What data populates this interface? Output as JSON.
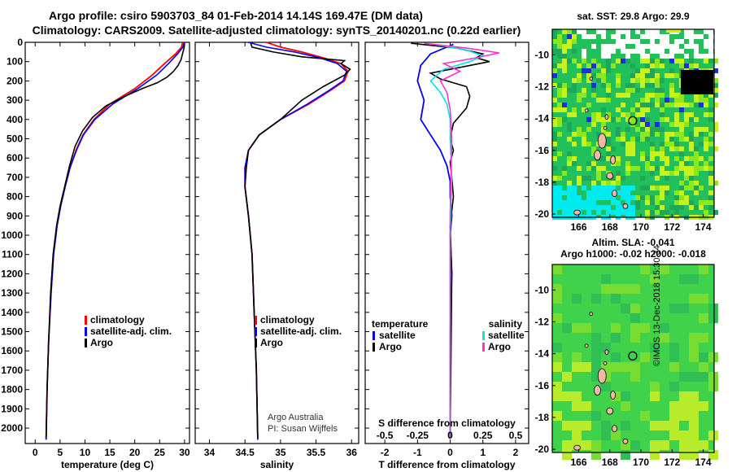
{
  "header": {
    "line1": "Argo profile: csiro 5903703_84 01-Feb-2014 14.14S 169.47E (DM data)",
    "line2": "Climatology: CARS2009. Satellite-adjusted climatology: synTS_20140201.nc (0.22d earlier)"
  },
  "credit": {
    "line1": "Argo Australia",
    "line2": "PI: Susan Wijffels"
  },
  "stamp": "©IMOS 13-Dec-2018 15:30:34",
  "colors": {
    "clim": "#ff0000",
    "sat": "#0000ff",
    "argo": "#000000",
    "sal_sat": "#00e5ee",
    "sal_argo": "#ff33cc"
  },
  "chart_data": [
    {
      "type": "line",
      "xlabel": "temperature (deg C)",
      "xlim": [
        -2,
        31
      ],
      "xticks": [
        0,
        5,
        10,
        15,
        20,
        25,
        30
      ],
      "ylim": [
        2080,
        0
      ],
      "yticks": [
        0,
        100,
        200,
        300,
        400,
        500,
        600,
        700,
        800,
        900,
        1000,
        1100,
        1200,
        1300,
        1400,
        1500,
        1600,
        1700,
        1800,
        1900,
        2000
      ],
      "legend": [
        "climatology",
        "satellite-adj. clim.",
        "Argo"
      ],
      "series": [
        {
          "name": "climatology",
          "color": "#ff0000",
          "x": [
            29.6,
            29.4,
            28.2,
            26.0,
            23.5,
            20.0,
            15.0,
            11.8,
            9.6,
            8.2,
            7.0,
            6.0,
            5.1,
            4.4,
            3.7,
            3.2,
            2.7,
            2.4,
            2.2
          ],
          "y": [
            0,
            25,
            60,
            110,
            170,
            240,
            320,
            400,
            480,
            560,
            650,
            750,
            850,
            950,
            1100,
            1300,
            1550,
            1800,
            2060
          ]
        },
        {
          "name": "satellite-adj. clim.",
          "color": "#0000ff",
          "x": [
            29.9,
            29.7,
            28.6,
            26.8,
            24.4,
            20.6,
            15.6,
            12.0,
            9.7,
            8.3,
            7.0,
            6.0,
            5.1,
            4.4,
            3.7,
            3.2,
            2.7,
            2.4,
            2.2
          ],
          "y": [
            0,
            25,
            60,
            110,
            170,
            240,
            320,
            400,
            480,
            560,
            650,
            750,
            850,
            950,
            1100,
            1300,
            1550,
            1800,
            2060
          ]
        },
        {
          "name": "Argo",
          "color": "#000000",
          "x": [
            30.0,
            29.9,
            29.6,
            29.3,
            28.7,
            27.8,
            26.5,
            24.5,
            21.5,
            18.0,
            14.2,
            11.5,
            9.5,
            8.0,
            6.9,
            5.9,
            5.0,
            4.3,
            3.6,
            3.1,
            2.7,
            2.4,
            2.2
          ],
          "y": [
            5,
            30,
            60,
            90,
            120,
            150,
            180,
            210,
            240,
            280,
            330,
            390,
            460,
            540,
            640,
            750,
            850,
            950,
            1100,
            1300,
            1550,
            1800,
            2050
          ]
        }
      ]
    },
    {
      "type": "line",
      "xlabel": "salinity",
      "xlim": [
        33.8,
        36.1
      ],
      "xticks": [
        34,
        34.5,
        35,
        35.5,
        36
      ],
      "xtick_labels": [
        "34",
        "34.5",
        "35",
        "35.5",
        "36"
      ],
      "ylim": [
        2080,
        0
      ],
      "legend": [
        "climatology",
        "satellite-adj. clim.",
        "Argo"
      ],
      "series": [
        {
          "name": "climatology",
          "color": "#ff0000",
          "x": [
            34.8,
            35.0,
            35.3,
            35.6,
            35.85,
            35.95,
            35.9,
            35.7,
            35.4,
            35.0,
            34.7,
            34.55,
            34.5,
            34.5,
            34.55,
            34.6,
            34.63,
            34.66,
            34.68
          ],
          "y": [
            0,
            25,
            50,
            80,
            110,
            150,
            200,
            250,
            320,
            400,
            480,
            560,
            650,
            750,
            900,
            1100,
            1400,
            1700,
            2060
          ]
        },
        {
          "name": "satellite-adj. clim.",
          "color": "#0000ff",
          "x": [
            34.55,
            34.8,
            35.2,
            35.55,
            35.8,
            35.93,
            35.88,
            35.68,
            35.38,
            35.0,
            34.7,
            34.55,
            34.5,
            34.5,
            34.55,
            34.6,
            34.63,
            34.66,
            34.68
          ],
          "y": [
            0,
            25,
            50,
            80,
            110,
            150,
            200,
            250,
            320,
            400,
            480,
            560,
            650,
            750,
            900,
            1100,
            1400,
            1700,
            2060
          ]
        },
        {
          "name": "Argo",
          "color": "#000000",
          "x": [
            34.58,
            34.6,
            34.9,
            35.3,
            35.9,
            35.85,
            35.98,
            35.9,
            35.6,
            35.3,
            35.0,
            34.7,
            34.55,
            34.52,
            34.5,
            34.55,
            34.6,
            34.63,
            34.66,
            34.68
          ],
          "y": [
            5,
            25,
            50,
            75,
            95,
            110,
            140,
            170,
            230,
            300,
            400,
            480,
            560,
            650,
            750,
            900,
            1100,
            1400,
            1700,
            2050
          ]
        }
      ]
    },
    {
      "type": "line",
      "xlabel": "T difference from climatology",
      "xlim": [
        -2.6,
        2.4
      ],
      "xticks": [
        -2,
        -1,
        0,
        1,
        2
      ],
      "ylim": [
        2080,
        0
      ],
      "secondary_xlabel": "S difference from climatology",
      "secondary_xticks": [
        -0.5,
        -0.25,
        0,
        0.25,
        0.5
      ],
      "secondary_xtick_labels": [
        "-0.5",
        "-0.25",
        "0",
        "0.25",
        "0.5"
      ],
      "legend_left_title": "temperature",
      "legend_right_title": "salinity",
      "legend_left": [
        "satellite",
        "Argo"
      ],
      "legend_right": [
        "satellite",
        "Argo"
      ],
      "series": [
        {
          "name": "temperature satellite",
          "color": "#0000ff",
          "x": [
            0.1,
            -0.6,
            -0.9,
            -1.0,
            -0.8,
            -0.9,
            -0.6,
            -0.3,
            -0.1,
            0,
            0,
            0.05,
            0,
            0.05,
            0,
            0,
            0
          ],
          "y": [
            10,
            60,
            120,
            200,
            300,
            400,
            480,
            560,
            640,
            720,
            800,
            900,
            1000,
            1200,
            1500,
            1800,
            2050
          ]
        },
        {
          "name": "temperature Argo",
          "color": "#000000",
          "x": [
            -1.2,
            0.2,
            1.0,
            0.8,
            1.2,
            0.3,
            -0.6,
            -0.3,
            0.5,
            0.6,
            0.5,
            0.1,
            0,
            0.1,
            0,
            0.05,
            0.1,
            0,
            0.05,
            0
          ],
          "y": [
            5,
            30,
            60,
            80,
            100,
            130,
            160,
            190,
            230,
            280,
            340,
            420,
            500,
            560,
            620,
            700,
            800,
            950,
            1200,
            2050
          ]
        },
        {
          "name": "salinity satellite",
          "color": "#00e5ee",
          "x": [
            -0.5,
            0.5,
            1.0,
            0.6,
            -0.2,
            -0.6,
            -0.3,
            -0.1,
            0,
            0,
            0.05,
            0,
            0,
            0
          ],
          "y": [
            10,
            40,
            70,
            100,
            140,
            200,
            260,
            320,
            400,
            500,
            700,
            1000,
            1500,
            2050
          ]
        },
        {
          "name": "salinity Argo",
          "color": "#ff33cc",
          "x": [
            -0.8,
            0.5,
            1.5,
            0.8,
            -0.2,
            0.3,
            -0.3,
            -0.1,
            0,
            0.05,
            0,
            0
          ],
          "y": [
            5,
            30,
            55,
            80,
            110,
            150,
            200,
            260,
            350,
            500,
            900,
            2050
          ]
        }
      ]
    },
    {
      "type": "heatmap",
      "title": "sat. SST: 29.8 Argo: 29.9",
      "xlim": [
        164.3,
        174.7
      ],
      "ylim": [
        -20.2,
        -8.4
      ],
      "xticks": [
        166,
        168,
        170,
        172,
        174
      ],
      "yticks": [
        -10,
        -12,
        -14,
        -16,
        -18,
        -20
      ],
      "argo_position": [
        169.47,
        -14.14
      ]
    },
    {
      "type": "heatmap",
      "title": "Altim. SLA: -0.041",
      "subtitle": "Argo h1000: -0.02 h2000: -0.018",
      "xlim": [
        164.3,
        174.7
      ],
      "ylim": [
        -20.2,
        -8.4
      ],
      "xticks": [
        166,
        168,
        170,
        172,
        174
      ],
      "yticks": [
        -10,
        -12,
        -14,
        -16,
        -18,
        -20
      ],
      "argo_position": [
        169.47,
        -14.14
      ]
    }
  ]
}
